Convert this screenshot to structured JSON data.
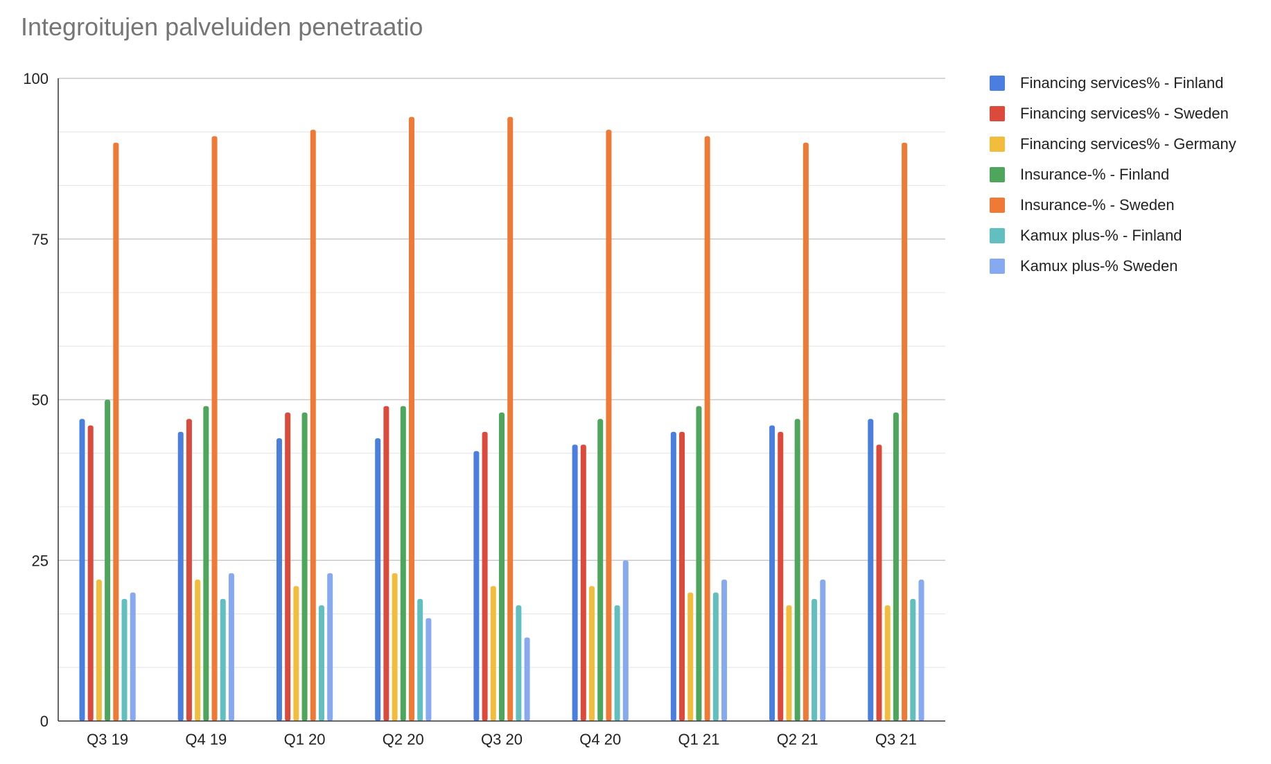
{
  "chart_data": {
    "type": "bar",
    "title": "Integroitujen palveluiden penetraatio",
    "xlabel": "",
    "ylabel": "",
    "ylim": [
      0,
      100
    ],
    "yticks": [
      0,
      25,
      50,
      75,
      100
    ],
    "grid": true,
    "legend_position": "right",
    "categories": [
      "Q3 19",
      "Q4 19",
      "Q1 20",
      "Q2 20",
      "Q3 20",
      "Q4 20",
      "Q1 21",
      "Q2 21",
      "Q3 21"
    ],
    "series": [
      {
        "name": "Financing services% - Finland",
        "color": "#4a7fe0",
        "values": [
          47,
          45,
          44,
          44,
          42,
          43,
          45,
          46,
          47
        ]
      },
      {
        "name": "Financing services% - Sweden",
        "color": "#dc4a3c",
        "values": [
          46,
          47,
          48,
          49,
          45,
          43,
          45,
          45,
          43
        ]
      },
      {
        "name": "Financing services% - Germany",
        "color": "#f2bc3c",
        "values": [
          22,
          22,
          21,
          23,
          21,
          21,
          20,
          18,
          18
        ]
      },
      {
        "name": "Insurance-% - Finland",
        "color": "#4ea65c",
        "values": [
          50,
          49,
          48,
          49,
          48,
          47,
          49,
          47,
          48
        ]
      },
      {
        "name": "Insurance-% - Sweden",
        "color": "#ee7a35",
        "values": [
          90,
          91,
          92,
          94,
          94,
          92,
          91,
          90,
          90
        ]
      },
      {
        "name": "Kamux plus-% - Finland",
        "color": "#62bfc0",
        "values": [
          19,
          19,
          18,
          19,
          18,
          18,
          20,
          19,
          19
        ]
      },
      {
        "name": "Kamux plus-% Sweden",
        "color": "#87a9f0",
        "values": [
          20,
          23,
          23,
          16,
          13,
          25,
          22,
          22,
          22
        ]
      }
    ]
  }
}
